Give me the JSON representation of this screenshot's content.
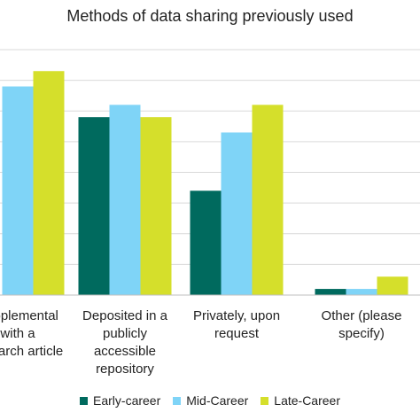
{
  "chart_data": {
    "type": "bar",
    "title": "Methods of data sharing previously used",
    "categories": [
      [
        "Supplemental",
        "with a",
        "research article"
      ],
      [
        "Deposited in a",
        "publicly",
        "accessible",
        "repository"
      ],
      [
        "Privately, upon",
        "request"
      ],
      [
        "Other (please",
        "specify)"
      ]
    ],
    "series": [
      {
        "name": "Early-career",
        "color": "#006a5e",
        "values": [
          null,
          58,
          34,
          2
        ]
      },
      {
        "name": "Mid-Career",
        "color": "#7fd4f7",
        "values": [
          68,
          62,
          53,
          2
        ]
      },
      {
        "name": "Late-Career",
        "color": "#d5df2b",
        "values": [
          73,
          58,
          62,
          6
        ]
      }
    ],
    "ylim": [
      0,
      80
    ],
    "grid": true,
    "legend_position": "bottom"
  }
}
